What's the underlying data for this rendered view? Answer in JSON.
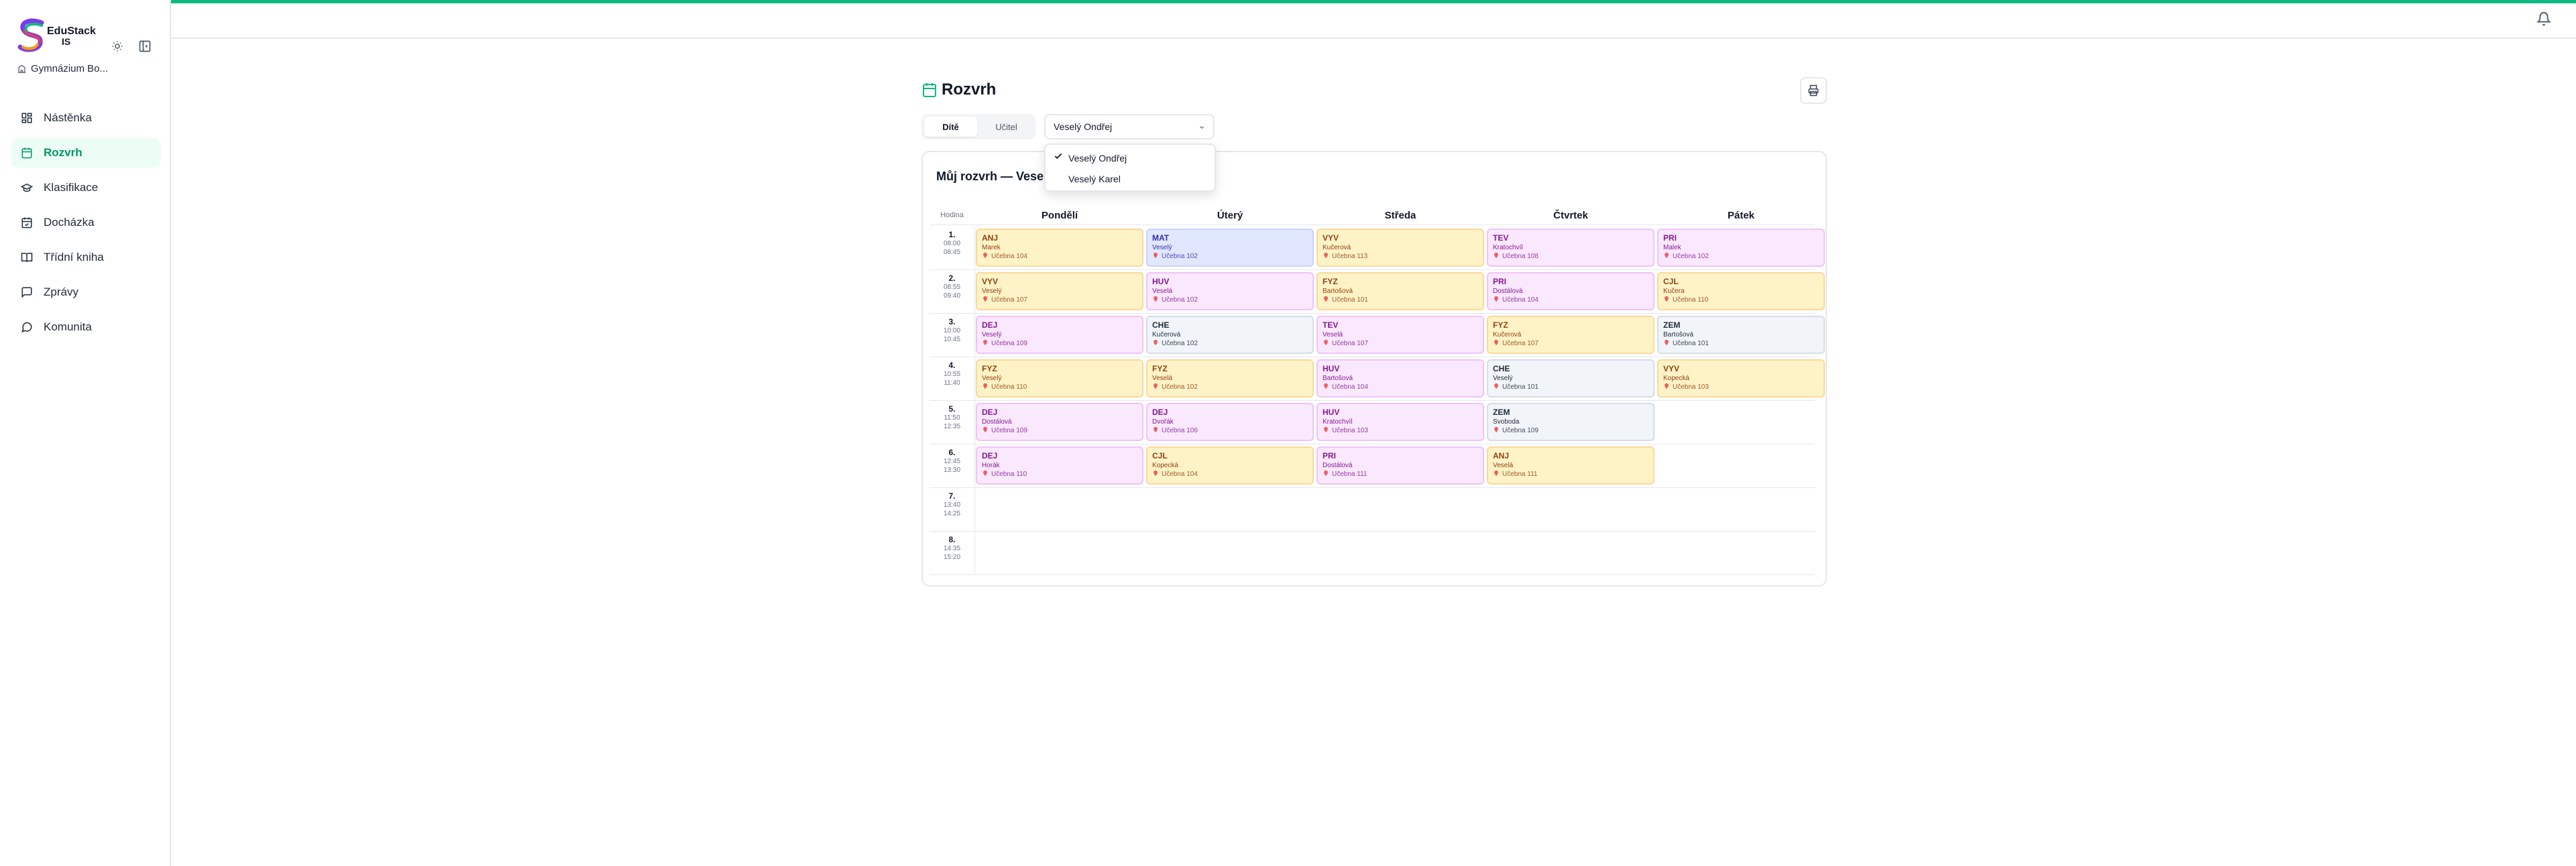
{
  "sidebar": {
    "brand": "EduStack",
    "brand_sub": "IS",
    "school": "Gymnázium Bo...",
    "nav": [
      {
        "label": "Nástěnka",
        "active": false
      },
      {
        "label": "Rozvrh",
        "active": true
      },
      {
        "label": "Klasifikace",
        "active": false
      },
      {
        "label": "Docházka",
        "active": false
      },
      {
        "label": "Třídní kniha",
        "active": false
      },
      {
        "label": "Zprávy",
        "active": false
      },
      {
        "label": "Komunita",
        "active": false
      }
    ]
  },
  "page": {
    "title": "Rozvrh",
    "toggle": [
      "Dítě",
      "Učitel"
    ],
    "toggle_active": 0,
    "select": "Veselý Ondřej",
    "dropdown": [
      {
        "label": "Veselý Ondřej",
        "checked": true
      },
      {
        "label": "Veselý Karel",
        "checked": false
      }
    ],
    "card_title": "Můj rozvrh — Veselý Ondřej"
  },
  "palettes": {
    "amber": {
      "bg": "#fef3c7",
      "border": "#fcd89a",
      "text": "#92400e"
    },
    "fuchsia": {
      "bg": "#fae8ff",
      "border": "#f0c2fb",
      "text": "#86198f"
    },
    "indigo": {
      "bg": "#e0e7ff",
      "border": "#c7d2fe",
      "text": "#3730a3"
    },
    "slate": {
      "bg": "#f1f5f9",
      "border": "#d6dde6",
      "text": "#1f2937"
    }
  },
  "timetable": {
    "hour_header": "Hodina",
    "days": [
      "Pondělí",
      "Úterý",
      "Středa",
      "Čtvrtek",
      "Pátek"
    ],
    "hours": [
      {
        "number": "1.",
        "start": "08:00",
        "end": "08:45"
      },
      {
        "number": "2.",
        "start": "08:55",
        "end": "09:40"
      },
      {
        "number": "3.",
        "start": "10:00",
        "end": "10:45"
      },
      {
        "number": "4.",
        "start": "10:55",
        "end": "11:40"
      },
      {
        "number": "5.",
        "start": "11:50",
        "end": "12:35"
      },
      {
        "number": "6.",
        "start": "12:45",
        "end": "13:30"
      },
      {
        "number": "7.",
        "start": "13:40",
        "end": "14:25"
      },
      {
        "number": "8.",
        "start": "14:35",
        "end": "15:20"
      }
    ],
    "lessons": [
      [
        {
          "subject": "ANJ",
          "teacher": "Marek",
          "room": "Učebna 104",
          "tone": "amber"
        },
        {
          "subject": "MAT",
          "teacher": "Veselý",
          "room": "Učebna 102",
          "tone": "indigo"
        },
        {
          "subject": "VYV",
          "teacher": "Kučerová",
          "room": "Učebna 113",
          "tone": "amber"
        },
        {
          "subject": "TEV",
          "teacher": "Kratochvíl",
          "room": "Učebna 108",
          "tone": "fuchsia"
        },
        {
          "subject": "PRI",
          "teacher": "Malek",
          "room": "Učebna 102",
          "tone": "fuchsia"
        }
      ],
      [
        {
          "subject": "VYV",
          "teacher": "Veselý",
          "room": "Učebna 107",
          "tone": "amber"
        },
        {
          "subject": "HUV",
          "teacher": "Veselá",
          "room": "Učebna 102",
          "tone": "fuchsia"
        },
        {
          "subject": "FYZ",
          "teacher": "Bartošová",
          "room": "Učebna 101",
          "tone": "amber"
        },
        {
          "subject": "PRI",
          "teacher": "Dostálová",
          "room": "Učebna 104",
          "tone": "fuchsia"
        },
        {
          "subject": "CJL",
          "teacher": "Kučera",
          "room": "Učebna 110",
          "tone": "amber"
        }
      ],
      [
        {
          "subject": "DEJ",
          "teacher": "Veselý",
          "room": "Učebna 109",
          "tone": "fuchsia"
        },
        {
          "subject": "CHE",
          "teacher": "Kučerová",
          "room": "Učebna 102",
          "tone": "slate"
        },
        {
          "subject": "TEV",
          "teacher": "Veselá",
          "room": "Učebna 107",
          "tone": "fuchsia"
        },
        {
          "subject": "FYZ",
          "teacher": "Kučerová",
          "room": "Učebna 107",
          "tone": "amber"
        },
        {
          "subject": "ZEM",
          "teacher": "Bartošová",
          "room": "Učebna 101",
          "tone": "slate"
        }
      ],
      [
        {
          "subject": "FYZ",
          "teacher": "Veselý",
          "room": "Učebna 110",
          "tone": "amber"
        },
        {
          "subject": "FYZ",
          "teacher": "Veselá",
          "room": "Učebna 102",
          "tone": "amber"
        },
        {
          "subject": "HUV",
          "teacher": "Bartošová",
          "room": "Učebna 104",
          "tone": "fuchsia"
        },
        {
          "subject": "CHE",
          "teacher": "Veselý",
          "room": "Učebna 101",
          "tone": "slate"
        },
        {
          "subject": "VYV",
          "teacher": "Kopecká",
          "room": "Učebna 103",
          "tone": "amber"
        }
      ],
      [
        {
          "subject": "DEJ",
          "teacher": "Dostálová",
          "room": "Učebna 109",
          "tone": "fuchsia"
        },
        {
          "subject": "DEJ",
          "teacher": "Dvořák",
          "room": "Učebna 106",
          "tone": "fuchsia"
        },
        {
          "subject": "HUV",
          "teacher": "Kratochvíl",
          "room": "Učebna 103",
          "tone": "fuchsia"
        },
        {
          "subject": "ZEM",
          "teacher": "Svoboda",
          "room": "Učebna 109",
          "tone": "slate"
        },
        null
      ],
      [
        {
          "subject": "DEJ",
          "teacher": "Horák",
          "room": "Učebna 110",
          "tone": "fuchsia"
        },
        {
          "subject": "CJL",
          "teacher": "Kopecká",
          "room": "Učebna 104",
          "tone": "amber"
        },
        {
          "subject": "PRI",
          "teacher": "Dostálová",
          "room": "Učebna 111",
          "tone": "fuchsia"
        },
        {
          "subject": "ANJ",
          "teacher": "Veselá",
          "room": "Učebna 111",
          "tone": "amber"
        },
        null
      ],
      [
        null,
        null,
        null,
        null,
        null
      ],
      [
        null,
        null,
        null,
        null,
        null
      ]
    ]
  }
}
